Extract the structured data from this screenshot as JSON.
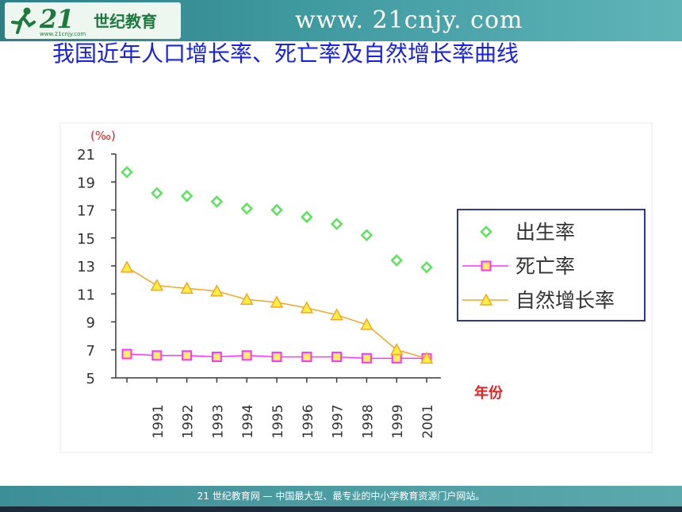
{
  "header": {
    "logo_number": "21",
    "logo_text": "世纪教育",
    "logo_subtext": "www.21cnjy.com",
    "site_url": "www. 21cnjy. com"
  },
  "page": {
    "title": "我国近年人口增长率、死亡率及自然增长率曲线"
  },
  "footer": {
    "text": "21 世纪教育网 — 中国最大型、最专业的中小学教育资源门户网站。"
  },
  "colors": {
    "birth": "#5be35b",
    "death": "#ff33ff",
    "death_fill": "#ffee66",
    "natural": "#f5a623",
    "natural_fill": "#ffee44",
    "title": "#1722e6",
    "year_label": "#e52020"
  },
  "chart_data": {
    "type": "line",
    "unit_label": "(‰)",
    "xlabel": "年份",
    "categories": [
      "",
      "1991",
      "1992",
      "1993",
      "1994",
      "1995",
      "1996",
      "1997",
      "1998",
      "1999",
      "2001"
    ],
    "yticks": [
      21,
      19,
      17,
      15,
      13,
      11,
      9,
      7,
      5
    ],
    "ylim": [
      5,
      21
    ],
    "legend_position": "right",
    "grid": false,
    "series": [
      {
        "name": "出生率",
        "marker": "diamond",
        "line": false,
        "values": [
          19.7,
          18.2,
          18.0,
          17.6,
          17.1,
          17.0,
          16.5,
          16.0,
          15.2,
          13.4,
          12.9
        ]
      },
      {
        "name": "死亡率",
        "marker": "square",
        "line": true,
        "values": [
          6.7,
          6.6,
          6.6,
          6.5,
          6.6,
          6.5,
          6.5,
          6.5,
          6.4,
          6.4,
          6.4
        ]
      },
      {
        "name": "自然增长率",
        "marker": "triangle",
        "line": true,
        "values": [
          12.9,
          11.6,
          11.4,
          11.2,
          10.6,
          10.4,
          10.0,
          9.5,
          8.8,
          7.0,
          6.4
        ]
      }
    ]
  }
}
